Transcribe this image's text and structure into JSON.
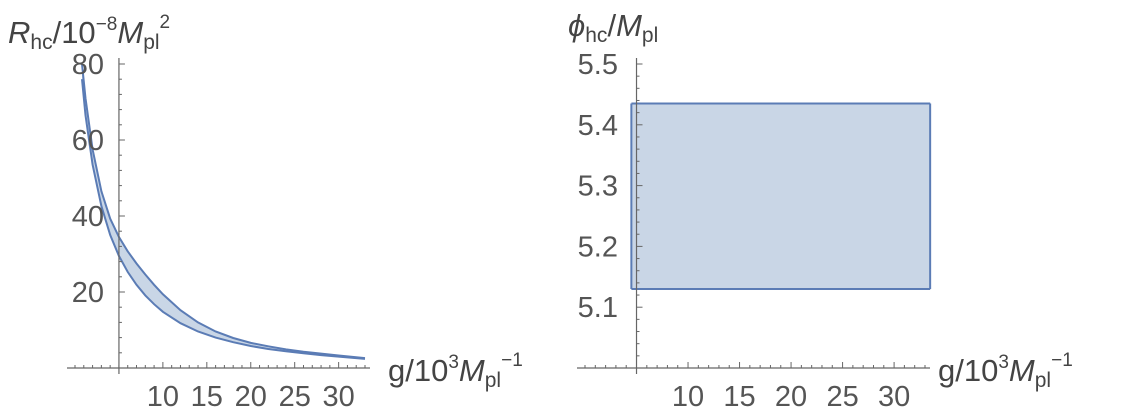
{
  "colors": {
    "band_fill": "#c9d6e6",
    "band_edge": "#5b7cb5",
    "axis": "#666666"
  },
  "chart_data": [
    {
      "type": "area",
      "title": "",
      "xlabel": {
        "main": "g/10",
        "exp": "3",
        "unit": "M",
        "unit_sub": "pl",
        "unit_exp": "−1"
      },
      "ylabel": {
        "main": "R",
        "main_sub": "hc",
        "mid": "/10",
        "exp": "−8",
        "unit": "M",
        "unit_sub": "pl",
        "unit_exp": "2"
      },
      "xlim": [
        0,
        33
      ],
      "ylim": [
        0,
        80
      ],
      "x_origin": 5,
      "x_ticks": [
        10,
        15,
        20,
        25,
        30
      ],
      "y_ticks": [
        20,
        40,
        60,
        80
      ],
      "grid": false,
      "series": [
        {
          "x": [
            0.8,
            1.2,
            2,
            3,
            4,
            5,
            6,
            7,
            8,
            9,
            10,
            12,
            14,
            16,
            18,
            20,
            22,
            24,
            26,
            28,
            30,
            33
          ],
          "lower": [
            76,
            66.5,
            53.5,
            42.6,
            35,
            29.5,
            25.3,
            21.9,
            19.1,
            16.8,
            14.8,
            11.8,
            9.6,
            8.0,
            6.8,
            5.8,
            5.0,
            4.4,
            3.9,
            3.4,
            3.0,
            2.4
          ],
          "upper": [
            80,
            71,
            57.5,
            46.5,
            39.3,
            34.5,
            30.7,
            27.5,
            24.6,
            21.9,
            19.4,
            15.2,
            12.0,
            9.6,
            7.9,
            6.6,
            5.7,
            4.9,
            4.3,
            3.8,
            3.3,
            2.6
          ]
        }
      ]
    },
    {
      "type": "area",
      "title": "",
      "xlabel": {
        "main": "g/10",
        "exp": "3",
        "unit": "M",
        "unit_sub": "pl",
        "unit_exp": "−1"
      },
      "ylabel": {
        "main": "ϕ",
        "main_sub": "hc",
        "mid": "/",
        "unit": "M",
        "unit_sub": "pl"
      },
      "xlim": [
        0,
        33
      ],
      "ylim": [
        5.0,
        5.5
      ],
      "x_origin": 5,
      "x_ticks": [
        10,
        15,
        20,
        25,
        30
      ],
      "y_ticks": [
        5.1,
        5.2,
        5.3,
        5.4,
        5.5
      ],
      "grid": false,
      "series": [
        {
          "x": [
            4.5,
            33.5
          ],
          "lower": [
            5.13,
            5.13
          ],
          "upper": [
            5.435,
            5.435
          ]
        }
      ]
    }
  ]
}
